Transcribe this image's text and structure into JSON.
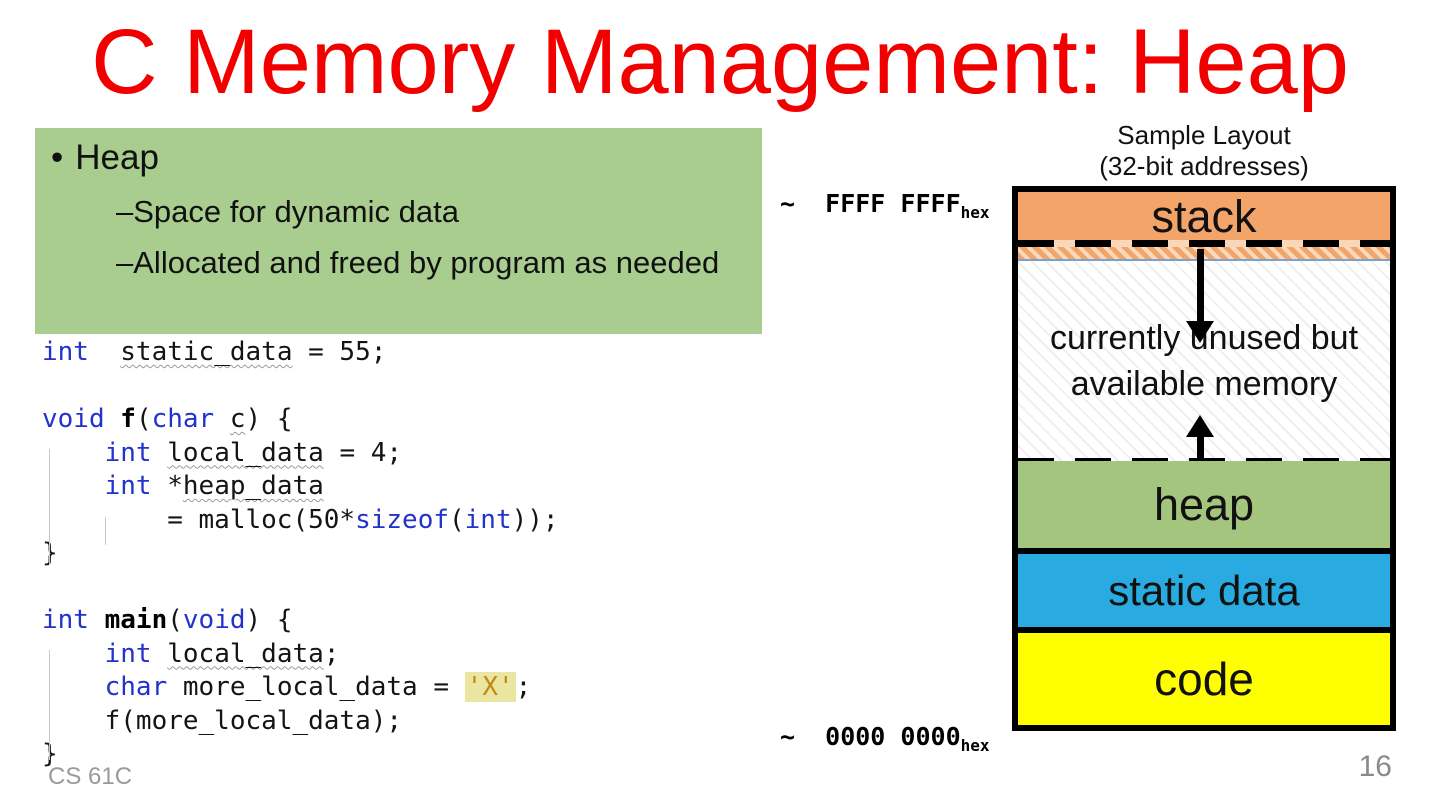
{
  "slide": {
    "title": "C Memory Management: Heap",
    "title_color": "#f20000",
    "footer": "CS 61C",
    "page_number": "16"
  },
  "heap_notes": {
    "background": "#a8cd8e",
    "bullet_symbol": "•",
    "heading": "Heap",
    "dash_symbol": "–",
    "item1": "Space for dynamic data",
    "item2": "Allocated and freed by program as needed"
  },
  "code": {
    "colors": {
      "keyword": "#2233cc",
      "plain": "#141414",
      "function": "#000000 bold",
      "string": "#c08a10",
      "string_highlight": "#eae6a2",
      "variable_underline": "#9a9a9a wavy"
    },
    "lines": [
      [
        [
          "k",
          "int"
        ],
        [
          "p",
          "  "
        ],
        [
          "v",
          "static_data"
        ],
        [
          "p",
          " = 55;"
        ]
      ],
      [],
      [
        [
          "k",
          "void"
        ],
        [
          "p",
          " "
        ],
        [
          "f",
          "f"
        ],
        [
          "p",
          "("
        ],
        [
          "k",
          "char"
        ],
        [
          "p",
          " "
        ],
        [
          "v",
          "c"
        ],
        [
          "p",
          ") {"
        ]
      ],
      [
        [
          "p",
          "    "
        ],
        [
          "k",
          "int"
        ],
        [
          "p",
          " "
        ],
        [
          "v",
          "local_data"
        ],
        [
          "p",
          " = 4;"
        ]
      ],
      [
        [
          "p",
          "    "
        ],
        [
          "k",
          "int"
        ],
        [
          "p",
          " *"
        ],
        [
          "v",
          "heap_data"
        ]
      ],
      [
        [
          "p",
          "        = malloc(50*"
        ],
        [
          "k",
          "sizeof"
        ],
        [
          "p",
          "("
        ],
        [
          "k",
          "int"
        ],
        [
          "p",
          "));"
        ]
      ],
      [
        [
          "p",
          "}"
        ]
      ],
      [],
      [
        [
          "k",
          "int"
        ],
        [
          "p",
          " "
        ],
        [
          "f",
          "main"
        ],
        [
          "p",
          "("
        ],
        [
          "k",
          "void"
        ],
        [
          "p",
          ") {"
        ]
      ],
      [
        [
          "p",
          "    "
        ],
        [
          "k",
          "int"
        ],
        [
          "p",
          " "
        ],
        [
          "v",
          "local_data"
        ],
        [
          "p",
          ";"
        ]
      ],
      [
        [
          "p",
          "    "
        ],
        [
          "k",
          "char"
        ],
        [
          "p",
          " more_local_data = "
        ],
        [
          "s",
          "'X'"
        ],
        [
          "p",
          ";"
        ]
      ],
      [
        [
          "p",
          "    f(more_local_data);"
        ]
      ],
      [
        [
          "p",
          "}"
        ]
      ]
    ]
  },
  "memory_diagram": {
    "header_line1": "Sample Layout",
    "header_line2": "(32-bit addresses)",
    "high_address": "~  FFFF FFFF",
    "low_address": "~  0000 0000",
    "address_subscript": "hex",
    "stack_label": "stack",
    "unused_line1": "currently unused but",
    "unused_line2": "available memory",
    "heap_label": "heap",
    "static_label": "static data",
    "code_label": "code",
    "colors": {
      "stack": "#f2a469",
      "unused": "#ffffff hatched",
      "heap": "#a4c57e",
      "static": "#29abe2",
      "code": "#ffff00",
      "boundary_blue_line": "#7ba2c8"
    }
  }
}
